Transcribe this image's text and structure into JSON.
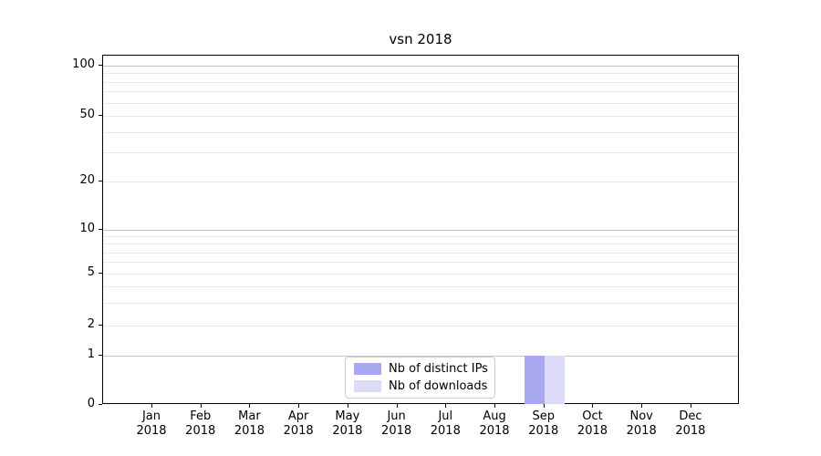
{
  "chart_data": {
    "type": "bar",
    "title": "vsn 2018",
    "x_tick_year": "2018",
    "categories": [
      "Jan",
      "Feb",
      "Mar",
      "Apr",
      "May",
      "Jun",
      "Jul",
      "Aug",
      "Sep",
      "Oct",
      "Nov",
      "Dec"
    ],
    "series": [
      {
        "name": "Nb of distinct IPs",
        "color": "#a8a8f0",
        "values": [
          0,
          0,
          0,
          0,
          0,
          0,
          0,
          0,
          1,
          0,
          0,
          0
        ]
      },
      {
        "name": "Nb of downloads",
        "color": "#dcdcf8",
        "values": [
          0,
          0,
          0,
          0,
          0,
          0,
          0,
          0,
          1,
          0,
          0,
          0
        ]
      }
    ],
    "yscale": "symlog",
    "ylim": [
      0,
      120
    ],
    "y_ticks": [
      0,
      1,
      2,
      5,
      10,
      20,
      50,
      100
    ],
    "y_minor_ticks": [
      3,
      4,
      6,
      7,
      8,
      9,
      30,
      40,
      60,
      70,
      80,
      90
    ],
    "grid": true,
    "legend_position": "lower center"
  },
  "colors": {
    "axis": "#000000",
    "grid_major_decade": "#c4c4c4",
    "grid_minor": "#e9e9e9",
    "legend_border": "#cccccc",
    "background": "#ffffff"
  }
}
